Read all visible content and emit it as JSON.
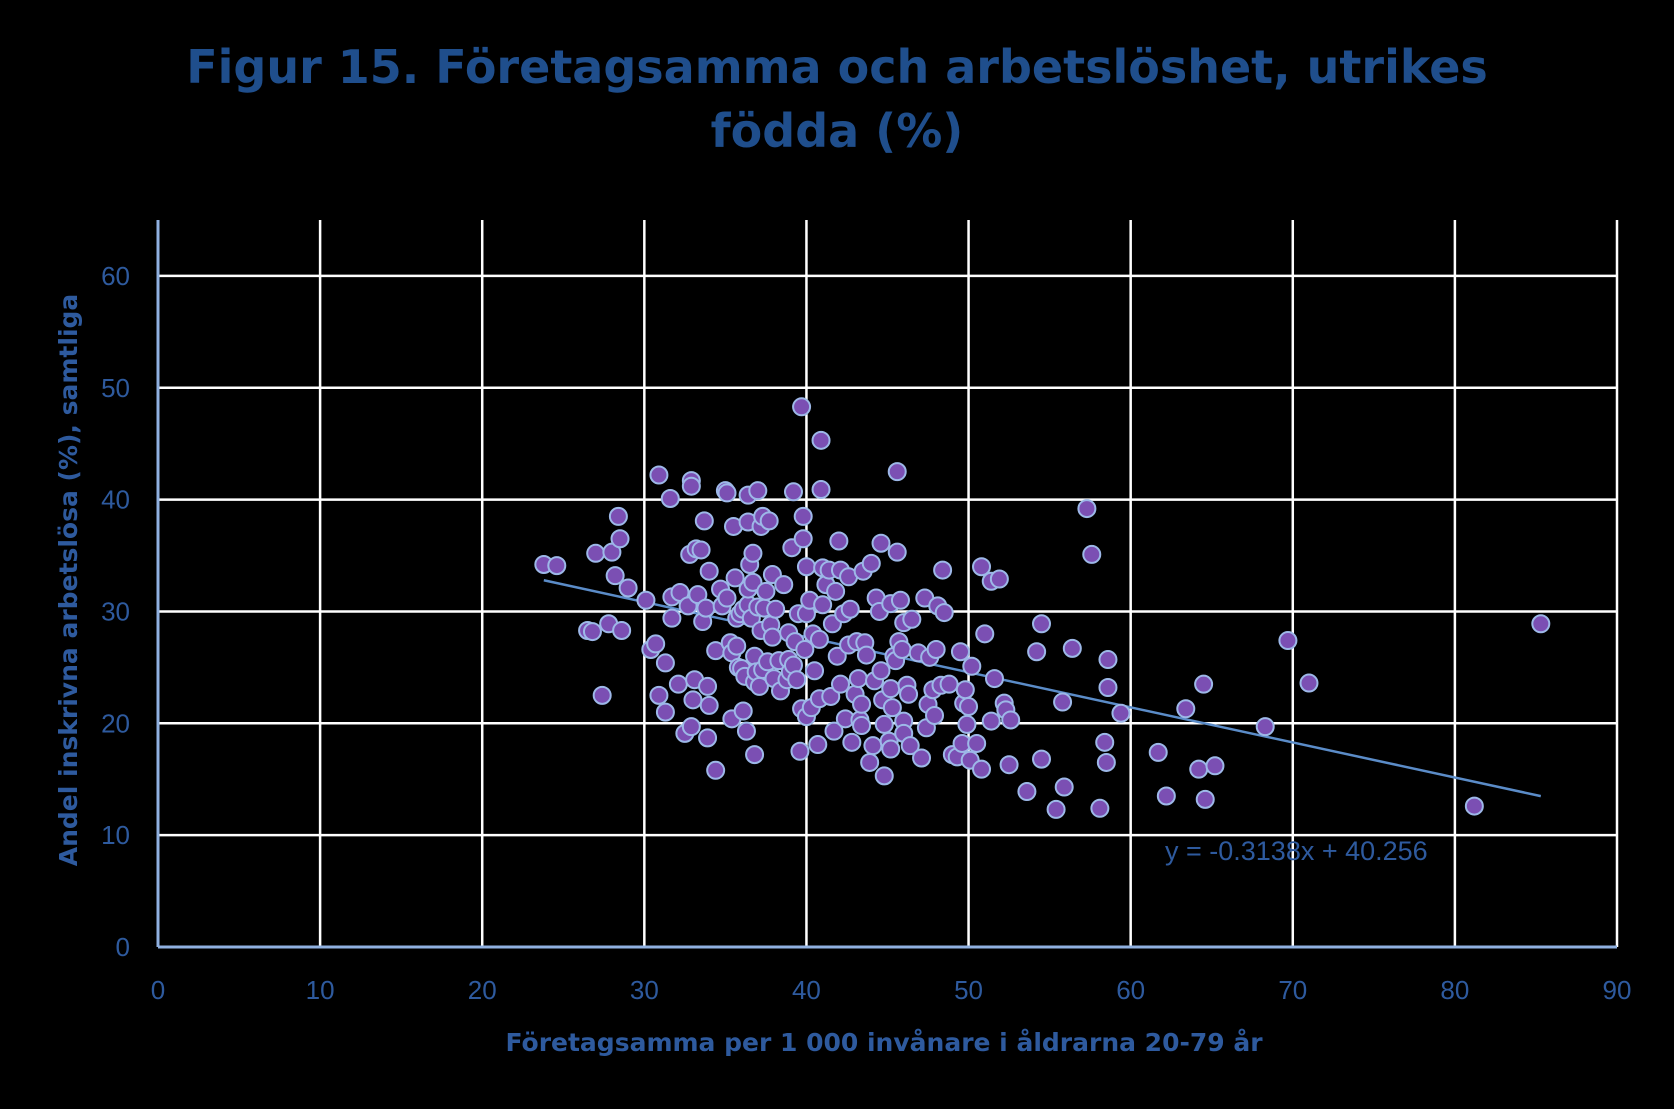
{
  "chart_data": {
    "type": "scatter",
    "title_line1": "Figur 15. Företagsamma och arbetslöshet, utrikes",
    "title_line2": "födda (%)",
    "xlabel": "Företagsamma per 1 000 invånare i åldrarna 20-79 år",
    "ylabel": "Andel inskrivna arbetslösa  (%), samtliga",
    "xlim": [
      0,
      90
    ],
    "ylim": [
      0,
      65
    ],
    "xticks": [
      0,
      10,
      20,
      30,
      40,
      50,
      60,
      70,
      80,
      90
    ],
    "yticks": [
      0,
      10,
      20,
      30,
      40,
      50,
      60
    ],
    "grid": true,
    "trendline": {
      "equation": "y = -0.3138x + 40.256",
      "slope": -0.3138,
      "intercept": 40.256,
      "x_range": [
        23.8,
        85.3
      ]
    },
    "colors": {
      "point_fill": "#7b4fb3",
      "point_stroke": "#9db8e8",
      "grid": "#ffffff",
      "axis": "#8fb0e0",
      "trend": "#5b8cc8",
      "text": "#2e5a9e",
      "background": "#000000"
    },
    "points": [
      [
        23.8,
        34.2
      ],
      [
        24.6,
        34.1
      ],
      [
        26.5,
        28.3
      ],
      [
        26.8,
        28.2
      ],
      [
        27.0,
        35.2
      ],
      [
        27.4,
        22.5
      ],
      [
        27.8,
        28.9
      ],
      [
        28.0,
        35.3
      ],
      [
        28.2,
        33.2
      ],
      [
        28.4,
        38.5
      ],
      [
        28.5,
        36.5
      ],
      [
        28.6,
        28.3
      ],
      [
        29.0,
        32.1
      ],
      [
        30.1,
        31.0
      ],
      [
        30.4,
        26.6
      ],
      [
        30.7,
        27.1
      ],
      [
        30.9,
        42.2
      ],
      [
        30.9,
        22.5
      ],
      [
        31.3,
        25.4
      ],
      [
        31.3,
        21.0
      ],
      [
        31.6,
        40.1
      ],
      [
        31.7,
        29.4
      ],
      [
        31.7,
        31.3
      ],
      [
        32.1,
        23.5
      ],
      [
        32.2,
        31.7
      ],
      [
        32.5,
        19.1
      ],
      [
        32.7,
        30.5
      ],
      [
        32.8,
        35.1
      ],
      [
        32.9,
        19.7
      ],
      [
        32.9,
        41.7
      ],
      [
        32.9,
        41.2
      ],
      [
        33.0,
        22.1
      ],
      [
        33.1,
        23.9
      ],
      [
        33.2,
        35.6
      ],
      [
        33.3,
        31.5
      ],
      [
        33.5,
        35.5
      ],
      [
        33.6,
        29.1
      ],
      [
        33.7,
        38.1
      ],
      [
        33.8,
        30.3
      ],
      [
        33.9,
        23.3
      ],
      [
        33.9,
        18.7
      ],
      [
        34.0,
        21.6
      ],
      [
        34.0,
        33.6
      ],
      [
        34.4,
        15.8
      ],
      [
        34.4,
        26.5
      ],
      [
        34.7,
        32.0
      ],
      [
        34.8,
        30.5
      ],
      [
        35.0,
        40.8
      ],
      [
        35.1,
        40.6
      ],
      [
        35.1,
        31.2
      ],
      [
        35.3,
        27.2
      ],
      [
        35.4,
        20.4
      ],
      [
        35.4,
        26.3
      ],
      [
        35.5,
        37.6
      ],
      [
        35.6,
        33.0
      ],
      [
        35.7,
        26.9
      ],
      [
        35.7,
        29.4
      ],
      [
        35.8,
        25.0
      ],
      [
        35.9,
        29.8
      ],
      [
        36.0,
        24.9
      ],
      [
        36.1,
        21.1
      ],
      [
        36.1,
        30.2
      ],
      [
        36.2,
        24.2
      ],
      [
        36.3,
        19.3
      ],
      [
        36.4,
        30.6
      ],
      [
        36.4,
        32.0
      ],
      [
        36.4,
        38.0
      ],
      [
        36.4,
        40.4
      ],
      [
        36.5,
        34.2
      ],
      [
        36.6,
        29.4
      ],
      [
        36.7,
        35.2
      ],
      [
        36.7,
        32.6
      ],
      [
        36.8,
        23.7
      ],
      [
        36.8,
        17.2
      ],
      [
        36.8,
        26.0
      ],
      [
        36.9,
        24.6
      ],
      [
        37.0,
        30.4
      ],
      [
        37.0,
        40.8
      ],
      [
        37.1,
        23.3
      ],
      [
        37.2,
        28.3
      ],
      [
        37.2,
        37.6
      ],
      [
        37.3,
        38.5
      ],
      [
        37.3,
        24.8
      ],
      [
        37.4,
        30.3
      ],
      [
        37.5,
        31.8
      ],
      [
        37.6,
        25.5
      ],
      [
        37.7,
        38.1
      ],
      [
        37.8,
        28.8
      ],
      [
        37.9,
        33.3
      ],
      [
        37.9,
        27.7
      ],
      [
        38.0,
        24.0
      ],
      [
        38.1,
        30.2
      ],
      [
        38.3,
        25.6
      ],
      [
        38.4,
        22.9
      ],
      [
        38.6,
        32.4
      ],
      [
        38.8,
        23.9
      ],
      [
        38.9,
        25.7
      ],
      [
        38.9,
        28.1
      ],
      [
        39.0,
        24.6
      ],
      [
        39.1,
        35.7
      ],
      [
        39.2,
        40.7
      ],
      [
        39.2,
        25.2
      ],
      [
        39.3,
        27.3
      ],
      [
        39.4,
        23.9
      ],
      [
        39.5,
        29.8
      ],
      [
        39.6,
        17.5
      ],
      [
        39.7,
        21.3
      ],
      [
        39.7,
        48.3
      ],
      [
        39.8,
        38.5
      ],
      [
        39.8,
        36.5
      ],
      [
        39.9,
        26.6
      ],
      [
        40.0,
        34.0
      ],
      [
        40.0,
        29.8
      ],
      [
        40.0,
        20.6
      ],
      [
        40.2,
        31.0
      ],
      [
        40.3,
        21.4
      ],
      [
        40.4,
        28.0
      ],
      [
        40.5,
        24.7
      ],
      [
        40.7,
        18.1
      ],
      [
        40.8,
        27.5
      ],
      [
        40.8,
        22.2
      ],
      [
        40.9,
        45.3
      ],
      [
        40.9,
        40.9
      ],
      [
        41.0,
        33.9
      ],
      [
        41.0,
        30.6
      ],
      [
        41.2,
        32.4
      ],
      [
        41.4,
        33.7
      ],
      [
        41.5,
        22.4
      ],
      [
        41.6,
        28.9
      ],
      [
        41.7,
        19.3
      ],
      [
        41.8,
        31.8
      ],
      [
        41.9,
        26.0
      ],
      [
        42.0,
        36.3
      ],
      [
        42.1,
        23.5
      ],
      [
        42.1,
        33.7
      ],
      [
        42.3,
        29.8
      ],
      [
        42.4,
        20.4
      ],
      [
        42.6,
        33.1
      ],
      [
        42.6,
        27.0
      ],
      [
        42.7,
        30.2
      ],
      [
        42.8,
        18.3
      ],
      [
        43.0,
        22.6
      ],
      [
        43.1,
        27.3
      ],
      [
        43.2,
        24.0
      ],
      [
        43.3,
        20.3
      ],
      [
        43.4,
        19.8
      ],
      [
        43.4,
        21.7
      ],
      [
        43.5,
        33.6
      ],
      [
        43.6,
        27.2
      ],
      [
        43.7,
        26.1
      ],
      [
        43.9,
        16.5
      ],
      [
        44.0,
        34.3
      ],
      [
        44.1,
        18.0
      ],
      [
        44.2,
        23.8
      ],
      [
        44.3,
        31.2
      ],
      [
        44.5,
        30.0
      ],
      [
        44.6,
        36.1
      ],
      [
        44.6,
        24.7
      ],
      [
        44.7,
        22.1
      ],
      [
        44.8,
        15.3
      ],
      [
        44.8,
        19.9
      ],
      [
        45.1,
        18.4
      ],
      [
        45.2,
        30.7
      ],
      [
        45.2,
        23.1
      ],
      [
        45.2,
        17.7
      ],
      [
        45.3,
        21.4
      ],
      [
        45.4,
        26.0
      ],
      [
        45.5,
        25.6
      ],
      [
        45.6,
        42.5
      ],
      [
        45.6,
        35.3
      ],
      [
        45.7,
        27.3
      ],
      [
        45.8,
        31.0
      ],
      [
        45.9,
        26.6
      ],
      [
        46.0,
        29.0
      ],
      [
        46.0,
        20.2
      ],
      [
        46.0,
        19.1
      ],
      [
        46.2,
        23.4
      ],
      [
        46.3,
        22.6
      ],
      [
        46.4,
        18.0
      ],
      [
        46.5,
        29.3
      ],
      [
        46.9,
        26.3
      ],
      [
        47.1,
        16.9
      ],
      [
        47.3,
        31.2
      ],
      [
        47.4,
        19.6
      ],
      [
        47.5,
        21.7
      ],
      [
        47.6,
        25.9
      ],
      [
        47.8,
        23.0
      ],
      [
        47.9,
        20.7
      ],
      [
        48.0,
        26.6
      ],
      [
        48.1,
        30.5
      ],
      [
        48.3,
        23.4
      ],
      [
        48.4,
        33.7
      ],
      [
        48.5,
        29.9
      ],
      [
        48.8,
        23.5
      ],
      [
        49.0,
        17.2
      ],
      [
        49.3,
        17.0
      ],
      [
        49.5,
        26.4
      ],
      [
        49.6,
        18.2
      ],
      [
        49.7,
        21.8
      ],
      [
        49.8,
        23.0
      ],
      [
        49.9,
        19.9
      ],
      [
        50.0,
        21.5
      ],
      [
        50.1,
        16.7
      ],
      [
        50.2,
        25.1
      ],
      [
        50.5,
        18.2
      ],
      [
        50.8,
        34.0
      ],
      [
        50.8,
        15.9
      ],
      [
        51.0,
        28.0
      ],
      [
        51.4,
        20.2
      ],
      [
        51.4,
        32.7
      ],
      [
        51.6,
        24.0
      ],
      [
        51.9,
        32.9
      ],
      [
        52.2,
        21.8
      ],
      [
        52.3,
        21.2
      ],
      [
        52.5,
        16.3
      ],
      [
        52.6,
        20.3
      ],
      [
        53.6,
        13.9
      ],
      [
        54.2,
        26.4
      ],
      [
        54.5,
        28.9
      ],
      [
        54.5,
        16.8
      ],
      [
        55.4,
        12.3
      ],
      [
        55.8,
        21.9
      ],
      [
        55.9,
        14.3
      ],
      [
        56.4,
        26.7
      ],
      [
        57.3,
        39.2
      ],
      [
        57.6,
        35.1
      ],
      [
        58.1,
        12.4
      ],
      [
        58.4,
        18.3
      ],
      [
        58.5,
        16.5
      ],
      [
        58.6,
        25.7
      ],
      [
        58.6,
        23.2
      ],
      [
        59.4,
        20.9
      ],
      [
        61.7,
        17.4
      ],
      [
        62.2,
        13.5
      ],
      [
        63.4,
        21.3
      ],
      [
        64.2,
        15.9
      ],
      [
        64.5,
        23.5
      ],
      [
        64.6,
        13.2
      ],
      [
        65.2,
        16.2
      ],
      [
        68.3,
        19.7
      ],
      [
        69.7,
        27.4
      ],
      [
        71.0,
        23.6
      ],
      [
        81.2,
        12.6
      ],
      [
        85.3,
        28.9
      ]
    ]
  }
}
